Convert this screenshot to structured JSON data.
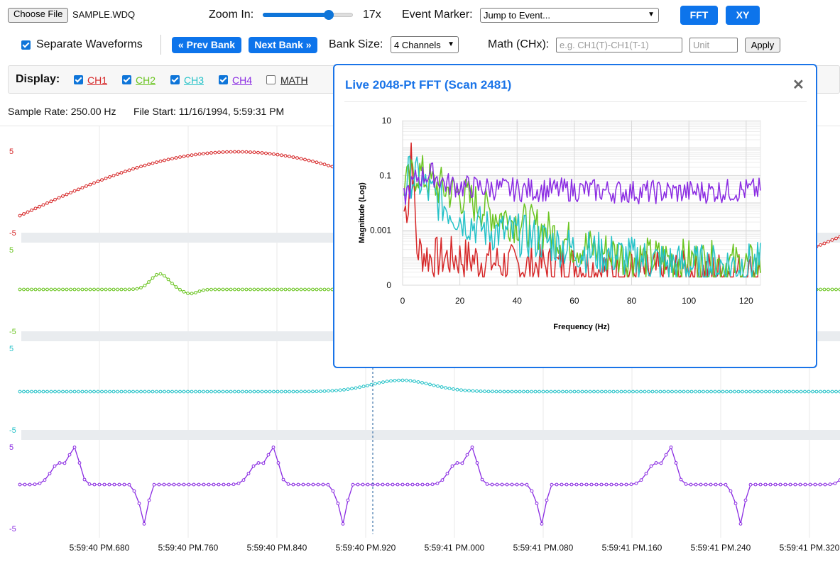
{
  "toolbar": {
    "choose_file_label": "Choose File",
    "file_name": "SAMPLE.WDQ",
    "zoom_label": "Zoom In:",
    "zoom_value": "17x",
    "zoom_level_fraction": 0.73,
    "event_marker_label": "Event Marker:",
    "event_marker_selected": "Jump to Event...",
    "fft_label": "FFT",
    "xy_label": "XY",
    "separate_waveforms_label": "Separate Waveforms",
    "separate_waveforms_checked": true,
    "prev_bank_label": "« Prev Bank",
    "next_bank_label": "Next Bank »",
    "bank_size_label": "Bank Size:",
    "bank_size_selected": "4 Channels",
    "math_label": "Math (CHx):",
    "math_placeholder": "e.g. CH1(T)-CH1(T-1)",
    "unit_placeholder": "Unit",
    "apply_label": "Apply"
  },
  "display": {
    "label": "Display:",
    "channels": [
      {
        "name": "CH1",
        "checked": true,
        "color": "#d62728"
      },
      {
        "name": "CH2",
        "checked": true,
        "color": "#6ac420"
      },
      {
        "name": "CH3",
        "checked": true,
        "color": "#25c2c8"
      },
      {
        "name": "CH4",
        "checked": true,
        "color": "#8a2be2"
      },
      {
        "name": "MATH",
        "checked": false,
        "color": "#222222"
      }
    ]
  },
  "info": {
    "sample_rate": "Sample Rate: 250.00 Hz",
    "file_start": "File Start: 11/16/1994, 5:59:31 PM"
  },
  "waveforms": {
    "channel_range_top": "5",
    "channel_range_bottom": "-5",
    "time_ticks": [
      "5:59:40 PM.680",
      "5:59:40 PM.760",
      "5:59:40 PM.840",
      "5:59:40 PM.920",
      "5:59:41 PM.000",
      "5:59:41 PM.080",
      "5:59:41 PM.160",
      "5:59:41 PM.240",
      "5:59:41 PM.320"
    ]
  },
  "fft_modal": {
    "title": "Live 2048-Pt FFT (Scan 2481)",
    "close_icon": "close-icon"
  },
  "chart_data": {
    "type": "line",
    "title": "",
    "xlabel": "Frequency (Hz)",
    "ylabel": "Magnitude (Log)",
    "x_ticks": [
      0,
      20,
      40,
      60,
      80,
      100,
      120
    ],
    "y_ticks": [
      "10",
      "0.1",
      "0.001",
      "0"
    ],
    "xlim": [
      0,
      125
    ],
    "y_scale": "log",
    "grid": true,
    "series": [
      {
        "color": "#d62728",
        "points": [
          [
            0.5,
            0.005
          ],
          [
            2,
            0.01
          ],
          [
            3,
            1.5
          ],
          [
            5,
            0.0002
          ],
          [
            10,
            0.0001
          ],
          [
            20,
            0.0001
          ],
          [
            40,
            5e-05
          ],
          [
            60,
            5e-05
          ],
          [
            80,
            3e-05
          ],
          [
            100,
            3e-05
          ],
          [
            125,
            3e-05
          ]
        ]
      },
      {
        "color": "#6ac420",
        "points": [
          [
            0.5,
            0.05
          ],
          [
            2,
            0.05
          ],
          [
            5,
            0.15
          ],
          [
            10,
            0.05
          ],
          [
            20,
            0.02
          ],
          [
            30,
            0.005
          ],
          [
            40,
            0.002
          ],
          [
            50,
            0.001
          ],
          [
            60,
            0.0003
          ],
          [
            80,
            0.0001
          ],
          [
            100,
            8e-05
          ],
          [
            125,
            5e-05
          ]
        ]
      },
      {
        "color": "#25c2c8",
        "points": [
          [
            0.5,
            0.03
          ],
          [
            2,
            0.1
          ],
          [
            5,
            0.08
          ],
          [
            10,
            0.02
          ],
          [
            20,
            0.003
          ],
          [
            30,
            0.001
          ],
          [
            40,
            0.0007
          ],
          [
            50,
            0.0004
          ],
          [
            60,
            0.0002
          ],
          [
            80,
            0.0001
          ],
          [
            100,
            5e-05
          ],
          [
            125,
            6e-05
          ]
        ]
      },
      {
        "color": "#8a2be2",
        "points": [
          [
            0.5,
            0.015
          ],
          [
            2,
            0.03
          ],
          [
            5,
            0.08
          ],
          [
            10,
            0.12
          ],
          [
            15,
            0.05
          ],
          [
            20,
            0.04
          ],
          [
            40,
            0.03
          ],
          [
            60,
            0.03
          ],
          [
            80,
            0.025
          ],
          [
            100,
            0.025
          ],
          [
            125,
            0.03
          ]
        ]
      }
    ]
  }
}
